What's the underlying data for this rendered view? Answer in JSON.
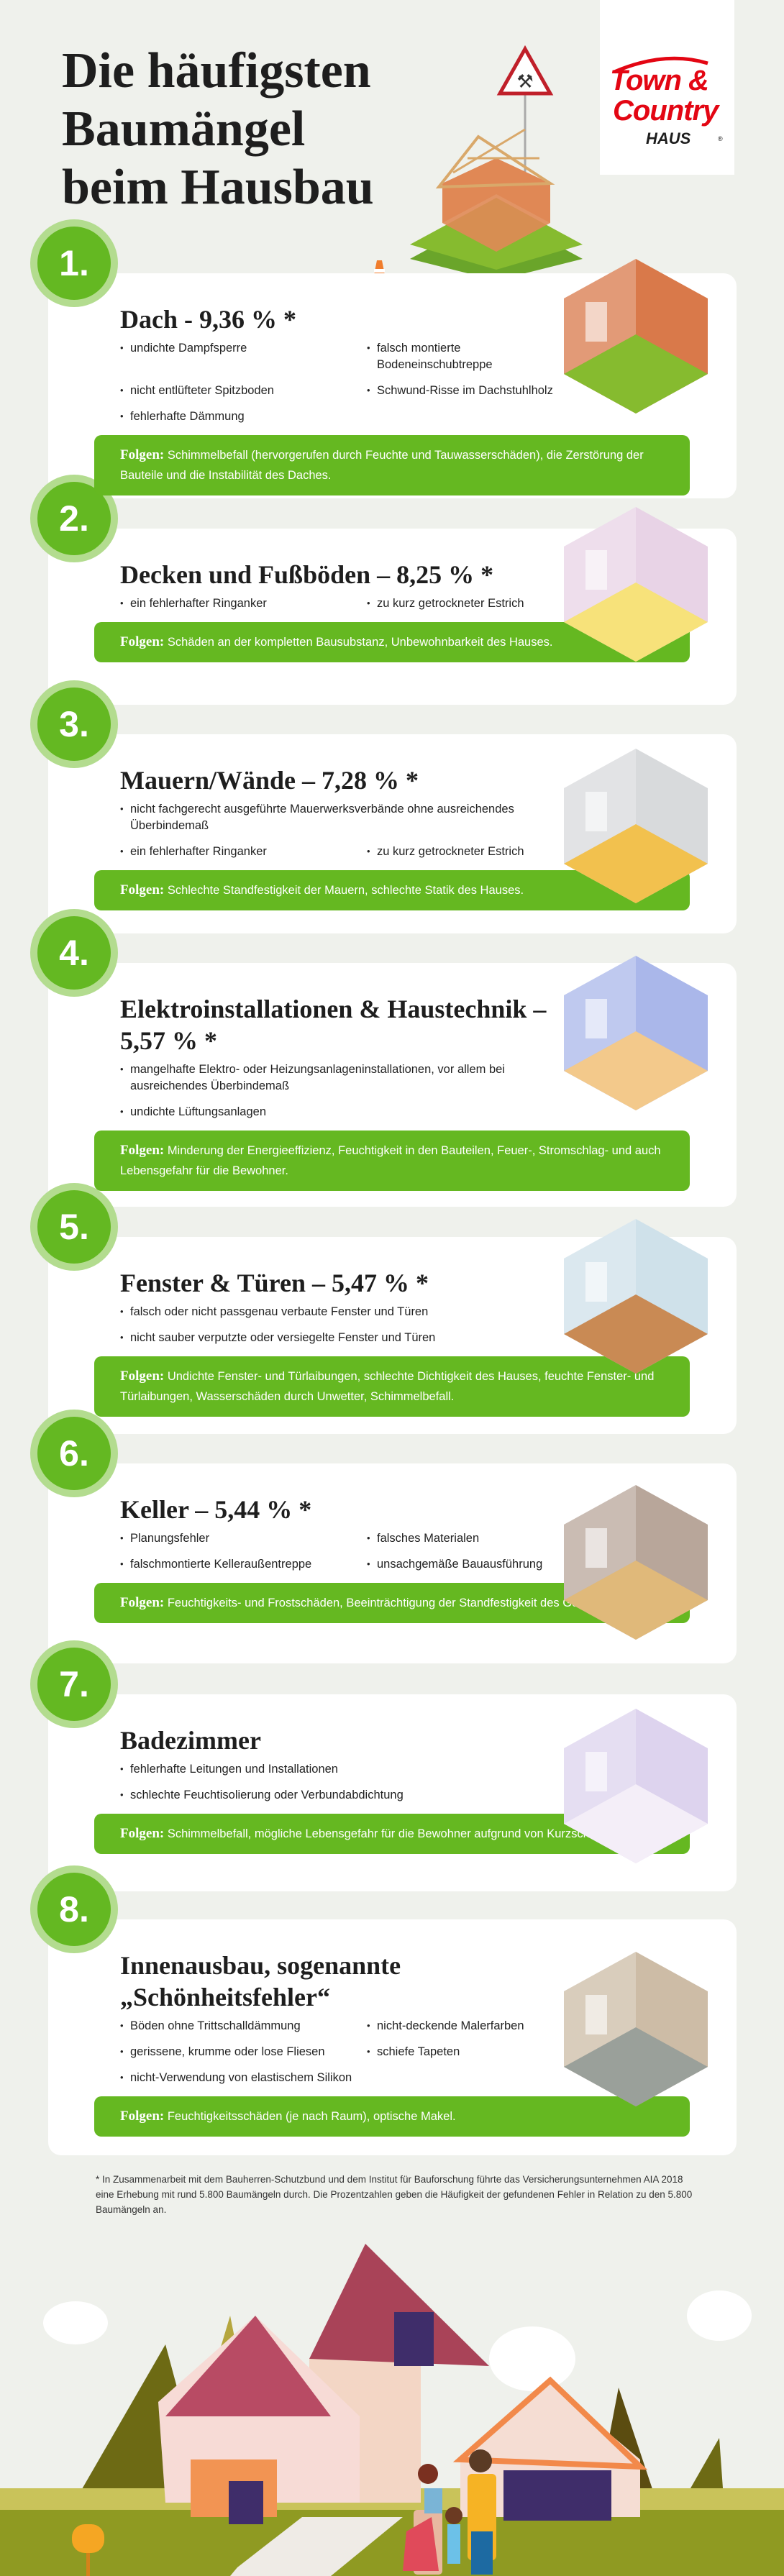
{
  "header": {
    "title_lines": [
      "Die häufigsten",
      "Baumängel",
      "beim Hausbau"
    ],
    "logo": {
      "line1": "Town &",
      "line2": "Country",
      "line3": "HAUS",
      "registered": "®",
      "brand_color": "#e30613"
    }
  },
  "colors": {
    "accent": "#65b821",
    "accent_light": "#b3dc8f",
    "background": "#eff1ec"
  },
  "folgen_label": "Folgen:",
  "cards": [
    {
      "number": "1.",
      "title": "Dach - 9,36 % *",
      "bullets": [
        "undichte Dampfsperre",
        "falsch montierte Bodeneinschubtreppe",
        "nicht entlüfteter Spitzboden",
        "Schwund-Risse im Dachstuhlholz",
        "fehlerhafte Dämmung"
      ],
      "consequences": "Schimmelbefall (hervorgerufen durch Feuchte und Tauwasserschäden), die Zerstörung der Bauteile und die Instabilität des Daches."
    },
    {
      "number": "2.",
      "title": "Decken und Fußböden – 8,25 % *",
      "bullets": [
        "ein fehlerhafter Ringanker",
        "zu kurz getrockneter Estrich"
      ],
      "consequences": "Schäden an der kompletten Bausubstanz, Unbewohnbarkeit des Hauses."
    },
    {
      "number": "3.",
      "title": "Mauern/Wände – 7,28 % *",
      "bullets": [
        "nicht fachgerecht ausgeführte Mauerwerksverbände ohne ausreichendes Überbindemaß",
        "ein fehlerhafter Ringanker",
        "zu kurz getrockneter Estrich"
      ],
      "consequences": "Schlechte Standfestigkeit der Mauern, schlechte Statik des Hauses."
    },
    {
      "number": "4.",
      "title": "Elektroinstallationen & Haustechnik – 5,57 % *",
      "bullets": [
        "mangelhafte Elektro- oder Heizungsanlageninstallationen, vor allem bei ausreichendes Überbindemaß",
        "undichte Lüftungsanlagen"
      ],
      "consequences": "Minderung der Energieeffizienz, Feuchtigkeit in den Bauteilen, Feuer-, Stromschlag- und auch Lebensgefahr für die Bewohner."
    },
    {
      "number": "5.",
      "title": "Fenster & Türen – 5,47 % *",
      "bullets": [
        "falsch oder nicht passgenau verbaute Fenster und Türen",
        "nicht sauber verputzte oder versiegelte Fenster und Türen"
      ],
      "consequences": "Undichte Fenster- und Türlaibungen, schlechte Dichtigkeit des Hauses, feuchte Fenster- und Türlaibungen, Wasserschäden durch Unwetter, Schimmelbefall."
    },
    {
      "number": "6.",
      "title": "Keller – 5,44 % *",
      "bullets": [
        "Planungsfehler",
        "falsches Materialen",
        "falschmontierte Kelleraußentreppe",
        "unsachgemäße Bauausführung"
      ],
      "consequences": "Feuchtigkeits- und Frostschäden, Beeinträchtigung der Standfestigkeit des Gebäudes."
    },
    {
      "number": "7.",
      "title": "Badezimmer",
      "bullets": [
        "fehlerhafte Leitungen und Installationen",
        "schlechte Feuchtisolierung oder Verbundabdichtung"
      ],
      "consequences": "Schimmelbefall, mögliche Lebensgefahr für die Bewohner aufgrund von Kurzschlüssen."
    },
    {
      "number": "8.",
      "title": "Innenausbau, sogenannte „Schönheitsfehler“",
      "bullets": [
        "Böden ohne Trittschalldämmung",
        "nicht-deckende Malerfarben",
        "gerissene, krumme oder lose Fliesen",
        "schiefe Tapeten",
        "nicht-Verwendung von elastischem Silikon"
      ],
      "consequences": "Feuchtigkeitsschäden (je nach Raum), optische Makel."
    }
  ],
  "footnote": "* In Zusammenarbeit mit dem Bauherren-Schutzbund und dem Institut für Bauforschung führte das Versicherungsunternehmen AIA 2018 eine Erhebung mit rund 5.800 Baumängeln durch. Die Prozentzahlen geben die Häufigkeit der gefundenen Fehler in Relation zu den 5.800 Baumängeln an."
}
